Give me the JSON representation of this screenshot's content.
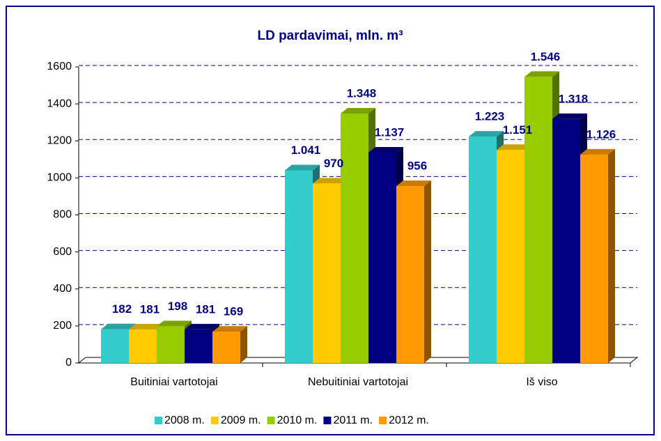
{
  "chart_data": {
    "type": "bar3d",
    "title": "LD pardavimai, mln. m³",
    "categories": [
      "Buitiniai vartotojai",
      "Nebuitiniai vartotojai",
      "Iš viso"
    ],
    "series": [
      {
        "name": "2008 m.",
        "color": "#33cccc",
        "values": [
          182,
          1041,
          1223
        ],
        "value_labels": [
          "182",
          "1.041",
          "1.223"
        ]
      },
      {
        "name": "2009 m.",
        "color": "#ffcc00",
        "values": [
          181,
          970,
          1151
        ],
        "value_labels": [
          "181",
          "970",
          "1.151"
        ]
      },
      {
        "name": "2010 m.",
        "color": "#99cc00",
        "values": [
          198,
          1348,
          1546
        ],
        "value_labels": [
          "198",
          "1.348",
          "1.546"
        ]
      },
      {
        "name": "2011 m.",
        "color": "#000080",
        "values": [
          181,
          1137,
          1318
        ],
        "value_labels": [
          "181",
          "1.137",
          "1.318"
        ]
      },
      {
        "name": "2012 m.",
        "color": "#ff9900",
        "values": [
          169,
          956,
          1126
        ],
        "value_labels": [
          "169",
          "956",
          "1.126"
        ]
      }
    ],
    "ylim": [
      0,
      1600
    ],
    "yticks": [
      0,
      200,
      400,
      600,
      800,
      1000,
      1200,
      1400,
      1600
    ],
    "grid": true,
    "legend": "bottom"
  }
}
